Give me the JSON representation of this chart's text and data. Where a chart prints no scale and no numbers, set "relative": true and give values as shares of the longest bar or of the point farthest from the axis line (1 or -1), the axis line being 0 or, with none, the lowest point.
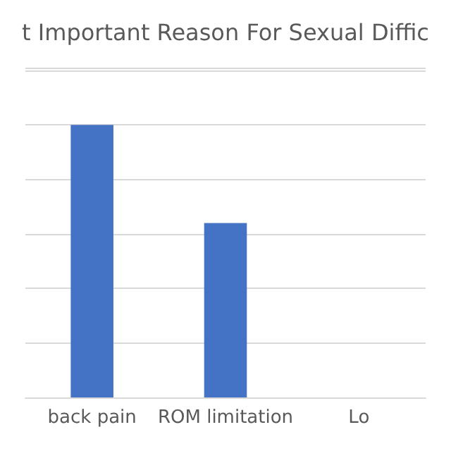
{
  "chart_data": {
    "type": "bar",
    "title": "t Important Reason For Sexual Diffic",
    "categories": [
      "back pain",
      "ROM limitation",
      "Lo"
    ],
    "values": [
      1,
      0.64,
      null
    ],
    "color": "#4472c4",
    "relative": true,
    "grid": "y"
  }
}
